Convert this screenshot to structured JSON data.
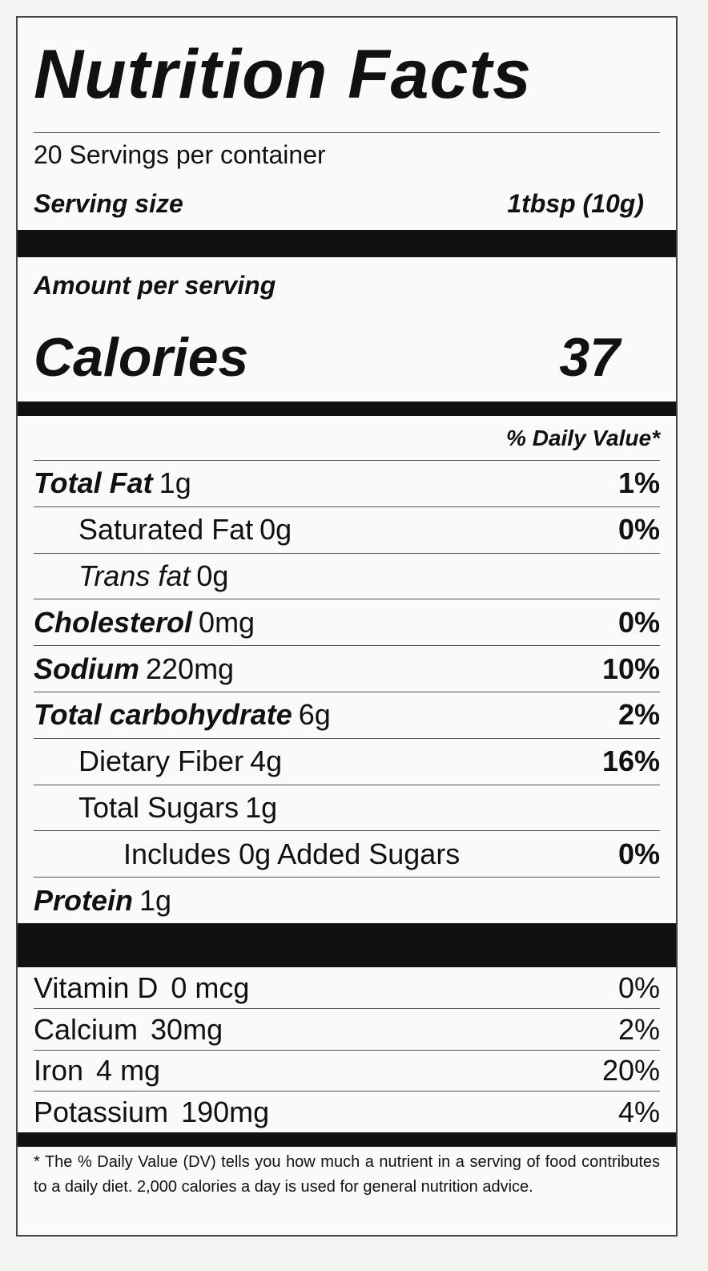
{
  "title": "Nutrition Facts",
  "servings": "20 Servings per container",
  "serving_size": {
    "label": "Serving size",
    "value": "1tbsp (10g)"
  },
  "amount_per_serving": "Amount per serving",
  "calories": {
    "label": "Calories",
    "value": 37
  },
  "daily_value_header": "% Daily Value*",
  "nutrients": [
    {
      "name": "Total Fat",
      "amount": "1g",
      "dv": "1%",
      "sub": [
        {
          "name": "Saturated Fat",
          "amount": "0g",
          "dv": "0%"
        },
        {
          "name": "Trans fat",
          "amount": "0g"
        }
      ]
    },
    {
      "name": "Cholesterol",
      "amount": "0mg",
      "dv": "0%"
    },
    {
      "name": "Sodium",
      "amount": "220mg",
      "dv": "10%"
    },
    {
      "name": "Total carbohydrate",
      "amount": "6g",
      "dv": "2%",
      "sub": [
        {
          "name": "Dietary Fiber",
          "amount": "4g",
          "dv": "16%"
        },
        {
          "name": "Total Sugars",
          "amount": "1g",
          "sub": [
            {
              "name": "Includes 0g Added Sugars",
              "dv": "0%"
            }
          ]
        }
      ]
    },
    {
      "name": "Protein",
      "amount": "1g"
    }
  ],
  "vitamins": [
    {
      "name": "Vitamin D",
      "amount": "0 mcg",
      "dv": "0%"
    },
    {
      "name": "Calcium",
      "amount": "30mg",
      "dv": "2%"
    },
    {
      "name": "Iron",
      "amount": "4 mg",
      "dv": "20%"
    },
    {
      "name": "Potassium",
      "amount": "190mg",
      "dv": "4%"
    }
  ],
  "footnote": "* The % Daily Value (DV) tells you how much a nutrient in a serving of food contributes to a daily diet. 2,000 calories a day is used for general nutrition advice."
}
